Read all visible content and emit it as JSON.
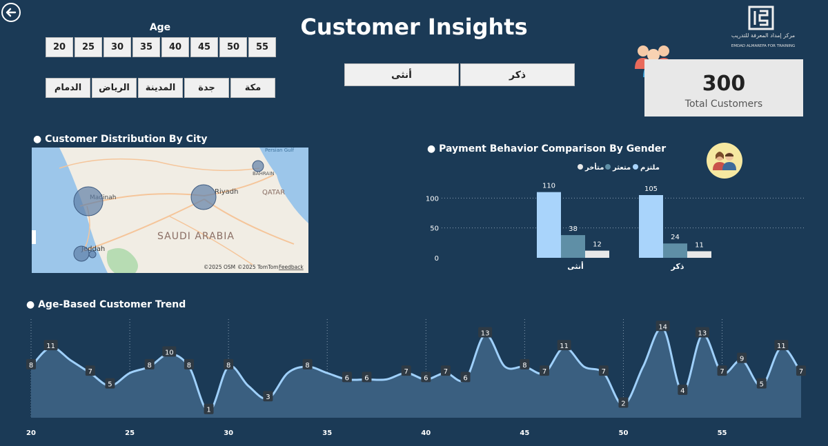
{
  "header": {
    "title": "Customer Insights",
    "logo_text_ar": "مركز إمداد المعرفة للتدريب",
    "logo_text_en": "EMDAD ALMAREFA FOR TRAINING"
  },
  "filters": {
    "age_label": "Age",
    "ages": [
      "20",
      "25",
      "30",
      "35",
      "40",
      "45",
      "50",
      "55"
    ],
    "cities": [
      "مكة",
      "جدة",
      "المدينة",
      "الرياض",
      "الدمام"
    ],
    "genders": [
      "ذكر",
      "أنثى"
    ]
  },
  "kpi": {
    "value": "300",
    "label": "Total Customers"
  },
  "map": {
    "title": "Customer Distribution By City",
    "labels": {
      "country": "SAUDI ARABIA",
      "riyadh": "Riyadh",
      "madinah": "Madinah",
      "jeddah": "Jeddah",
      "qatar": "QATAR",
      "bahrain": "BAHRAIN",
      "gulf": "Persian Gulf"
    },
    "attribution": {
      "osm": "©2025 OSM",
      "tomtom": "©2025 TomTom",
      "feedback": "Feedback"
    }
  },
  "chart_data": [
    {
      "type": "bar",
      "title": "Payment Behavior Comparison By Gender",
      "categories": [
        "أنثى",
        "ذكر"
      ],
      "series": [
        {
          "name": "ملتزم",
          "values": [
            110,
            105
          ],
          "color": "#a9d4fb"
        },
        {
          "name": "متعثر",
          "values": [
            38,
            24
          ],
          "color": "#5f8fa6"
        },
        {
          "name": "متأخر",
          "values": [
            12,
            11
          ],
          "color": "#e8e8e8"
        }
      ],
      "legend_order": [
        "متأخر",
        "متعثر",
        "ملتزم"
      ],
      "ylim": [
        0,
        120
      ],
      "yticks": [
        0,
        50,
        100
      ],
      "legend": "top-right"
    },
    {
      "type": "area",
      "title": "Age-Based Customer Trend",
      "x": [
        20,
        21,
        22,
        23,
        24,
        25,
        26,
        27,
        28,
        29,
        30,
        31,
        32,
        33,
        34,
        35,
        36,
        37,
        38,
        39,
        40,
        41,
        42,
        43,
        44,
        45,
        46,
        47,
        48,
        49,
        50,
        51,
        52,
        53,
        54,
        55,
        56,
        57,
        58,
        59
      ],
      "y": [
        8,
        11,
        9,
        7,
        5,
        7,
        8,
        10,
        8,
        1,
        8,
        5,
        3,
        7,
        8,
        7,
        6,
        6,
        6,
        7,
        6,
        7,
        6,
        13,
        8,
        8,
        7,
        11,
        8,
        7,
        2,
        8,
        14,
        4,
        13,
        7,
        9,
        5,
        11,
        7
      ],
      "labeled_points": [
        {
          "x": 20,
          "y": 8
        },
        {
          "x": 21,
          "y": 11
        },
        {
          "x": 23,
          "y": 7
        },
        {
          "x": 24,
          "y": 5
        },
        {
          "x": 26,
          "y": 8
        },
        {
          "x": 27,
          "y": 10
        },
        {
          "x": 28,
          "y": 8
        },
        {
          "x": 29,
          "y": 1
        },
        {
          "x": 30,
          "y": 8
        },
        {
          "x": 32,
          "y": 3
        },
        {
          "x": 34,
          "y": 8
        },
        {
          "x": 36,
          "y": 6
        },
        {
          "x": 37,
          "y": 6
        },
        {
          "x": 39,
          "y": 7
        },
        {
          "x": 40,
          "y": 6
        },
        {
          "x": 41,
          "y": 7
        },
        {
          "x": 42,
          "y": 6
        },
        {
          "x": 43,
          "y": 13
        },
        {
          "x": 45,
          "y": 8
        },
        {
          "x": 46,
          "y": 7
        },
        {
          "x": 47,
          "y": 11
        },
        {
          "x": 49,
          "y": 7
        },
        {
          "x": 50,
          "y": 2
        },
        {
          "x": 52,
          "y": 14
        },
        {
          "x": 53,
          "y": 4
        },
        {
          "x": 54,
          "y": 13
        },
        {
          "x": 55,
          "y": 7
        },
        {
          "x": 56,
          "y": 9
        },
        {
          "x": 57,
          "y": 5
        },
        {
          "x": 58,
          "y": 11
        },
        {
          "x": 59,
          "y": 7
        }
      ],
      "xticks": [
        20,
        25,
        30,
        35,
        40,
        45,
        50,
        55
      ],
      "xlim": [
        20,
        59
      ],
      "ylim": [
        0,
        15
      ],
      "grid": "vertical dotted",
      "line_color": "#9fd0fb",
      "fill_color": "#3a5f80"
    }
  ]
}
